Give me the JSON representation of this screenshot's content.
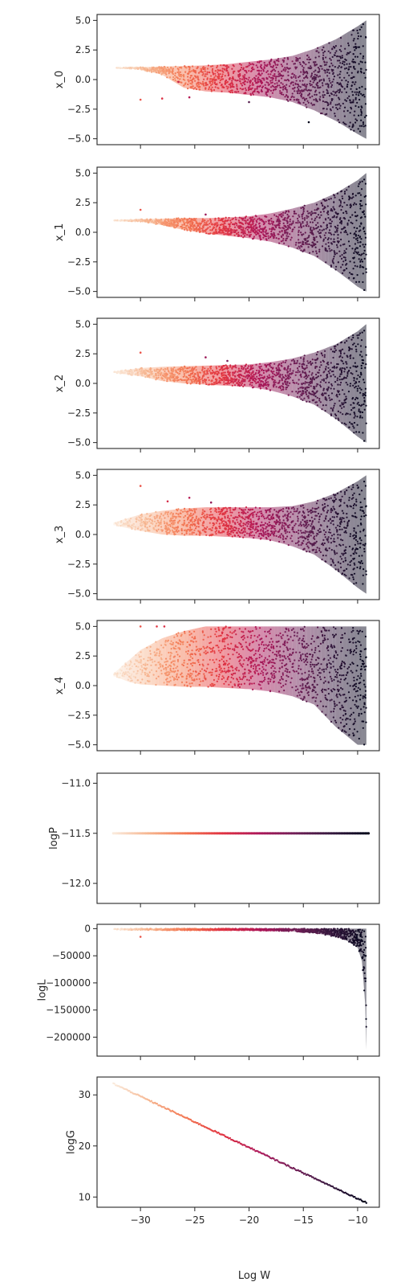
{
  "chart_data": {
    "type": "scatter",
    "shared_x": true,
    "xlabel": "Log W",
    "xlim": [
      -34,
      -8
    ],
    "xticks": [
      -30,
      -25,
      -20,
      -15,
      -10
    ],
    "xtick_labels": [
      "−30",
      "−25",
      "−20",
      "−15",
      "−10"
    ],
    "x_range_data": [
      -32.5,
      -9.0
    ],
    "colormap": [
      "#faebdd",
      "#f6b48e",
      "#f37651",
      "#e13342",
      "#ad1759",
      "#701f57",
      "#35193e",
      "#03051a"
    ],
    "grid": false,
    "legend": "none",
    "panels": [
      {
        "name": "x0",
        "ylabel": "x_0",
        "ylim": [
          -5.5,
          5.5
        ],
        "yticks": [
          -5.0,
          -2.5,
          0.0,
          2.5,
          5.0
        ],
        "ytick_labels": [
          "−5.0",
          "−2.5",
          "0.0",
          "2.5",
          "5.0"
        ],
        "envelope": {
          "x": [
            -32.5,
            -30,
            -28,
            -26,
            -24,
            -22,
            -20,
            -18,
            -16,
            -14,
            -12,
            -10,
            -9.2
          ],
          "upper": [
            1.0,
            1.05,
            1.1,
            1.15,
            1.2,
            1.3,
            1.5,
            1.7,
            2.0,
            2.6,
            3.4,
            4.5,
            5.0
          ],
          "lower": [
            1.0,
            0.85,
            0.4,
            -0.7,
            -1.0,
            -1.1,
            -1.3,
            -1.5,
            -1.9,
            -2.6,
            -3.5,
            -4.6,
            -5.0
          ]
        },
        "outliers": [
          [
            -30,
            -1.7
          ],
          [
            -28,
            -1.6
          ],
          [
            -25.5,
            -1.5
          ],
          [
            -20,
            -1.9
          ],
          [
            -14.5,
            -3.6
          ],
          [
            -26.5,
            -0.2
          ]
        ]
      },
      {
        "name": "x1",
        "ylabel": "x_1",
        "ylim": [
          -5.5,
          5.5
        ],
        "yticks": [
          -5.0,
          -2.5,
          0.0,
          2.5,
          5.0
        ],
        "ytick_labels": [
          "−5.0",
          "−2.5",
          "0.0",
          "2.5",
          "5.0"
        ],
        "envelope": {
          "x": [
            -32.5,
            -30,
            -28,
            -26,
            -24,
            -22,
            -20,
            -18,
            -16,
            -14,
            -12,
            -10,
            -9.2
          ],
          "upper": [
            1.0,
            1.1,
            1.15,
            1.2,
            1.2,
            1.25,
            1.35,
            1.6,
            2.0,
            2.5,
            3.3,
            4.4,
            5.0
          ],
          "lower": [
            1.0,
            0.9,
            0.6,
            0.2,
            -0.1,
            -0.3,
            -0.5,
            -0.8,
            -1.3,
            -2.0,
            -3.2,
            -4.6,
            -5.0
          ]
        },
        "outliers": [
          [
            -30,
            1.9
          ],
          [
            -24,
            1.5
          ]
        ]
      },
      {
        "name": "x2",
        "ylabel": "x_2",
        "ylim": [
          -5.5,
          5.5
        ],
        "yticks": [
          -5.0,
          -2.5,
          0.0,
          2.5,
          5.0
        ],
        "ytick_labels": [
          "−5.0",
          "−2.5",
          "0.0",
          "2.5",
          "5.0"
        ],
        "envelope": {
          "x": [
            -32.5,
            -30,
            -28,
            -26,
            -24,
            -22,
            -20,
            -18,
            -16,
            -14,
            -12,
            -10,
            -9.2
          ],
          "upper": [
            1.0,
            1.3,
            1.4,
            1.45,
            1.5,
            1.55,
            1.6,
            1.8,
            2.1,
            2.6,
            3.3,
            4.4,
            5.0
          ],
          "lower": [
            0.9,
            0.6,
            0.2,
            0.0,
            -0.1,
            -0.2,
            -0.3,
            -0.6,
            -1.1,
            -1.8,
            -3.0,
            -4.5,
            -5.0
          ]
        },
        "outliers": [
          [
            -30,
            2.6
          ],
          [
            -24,
            2.2
          ],
          [
            -22,
            1.9
          ]
        ]
      },
      {
        "name": "x3",
        "ylabel": "x_3",
        "ylim": [
          -5.5,
          5.5
        ],
        "yticks": [
          -5.0,
          -2.5,
          0.0,
          2.5,
          5.0
        ],
        "ytick_labels": [
          "−5.0",
          "−2.5",
          "0.0",
          "2.5",
          "5.0"
        ],
        "envelope": {
          "x": [
            -32.5,
            -30,
            -28,
            -26,
            -24,
            -22,
            -20,
            -18,
            -16,
            -14,
            -12,
            -10,
            -9.2
          ],
          "upper": [
            1.0,
            1.7,
            2.0,
            2.2,
            2.3,
            2.3,
            2.3,
            2.3,
            2.4,
            2.8,
            3.5,
            4.5,
            5.0
          ],
          "lower": [
            0.8,
            0.3,
            0.0,
            -0.1,
            -0.1,
            -0.2,
            -0.3,
            -0.5,
            -1.0,
            -1.7,
            -3.0,
            -4.5,
            -5.0
          ]
        },
        "outliers": [
          [
            -30,
            4.1
          ],
          [
            -27.5,
            2.8
          ],
          [
            -25.5,
            3.1
          ],
          [
            -23.5,
            2.7
          ]
        ]
      },
      {
        "name": "x4",
        "ylabel": "x_4",
        "ylim": [
          -5.5,
          5.5
        ],
        "yticks": [
          -5.0,
          -2.5,
          0.0,
          2.5,
          5.0
        ],
        "ytick_labels": [
          "−5.0",
          "−2.5",
          "0.0",
          "2.5",
          "5.0"
        ],
        "envelope": {
          "x": [
            -32.5,
            -31,
            -30,
            -28,
            -26,
            -24,
            -22,
            -20,
            -18,
            -16,
            -14,
            -12,
            -10,
            -9.2
          ],
          "upper": [
            1.0,
            2.2,
            3.0,
            4.0,
            4.6,
            5.0,
            5.0,
            5.0,
            5.0,
            5.0,
            5.0,
            5.0,
            5.0,
            5.0
          ],
          "lower": [
            0.8,
            0.3,
            0.1,
            0.0,
            -0.1,
            -0.1,
            -0.2,
            -0.3,
            -0.5,
            -0.9,
            -1.6,
            -3.5,
            -5.0,
            -5.0
          ]
        },
        "outliers": [
          [
            -30,
            5.0
          ],
          [
            -28.5,
            5.0
          ],
          [
            -27.8,
            5.0
          ]
        ]
      },
      {
        "name": "logP",
        "ylabel": "logP",
        "ylim": [
          -12.2,
          -10.9
        ],
        "yticks": [
          -12.0,
          -11.5,
          -11.0
        ],
        "ytick_labels": [
          "−12.0",
          "−11.5",
          "−11.0"
        ],
        "constant": -11.5
      },
      {
        "name": "logL",
        "ylabel": "logL",
        "ylim": [
          -235000,
          8000
        ],
        "yticks": [
          -200000,
          -150000,
          -100000,
          -50000,
          0
        ],
        "ytick_labels": [
          "−200000",
          "−150000",
          "−100000",
          "−50000",
          "0"
        ],
        "envelope": {
          "x": [
            -32.5,
            -28,
            -24,
            -20,
            -18,
            -16,
            -14,
            -12,
            -11,
            -10,
            -9.6,
            -9.3,
            -9.2
          ],
          "upper": [
            0,
            0,
            0,
            0,
            0,
            0,
            0,
            0,
            0,
            0,
            0,
            0,
            0
          ],
          "lower": [
            -2000,
            -3000,
            -3000,
            -3000,
            -4000,
            -5000,
            -8000,
            -15000,
            -22000,
            -35000,
            -60000,
            -140000,
            -222000
          ]
        },
        "outliers": [
          [
            -30,
            -15000
          ]
        ]
      },
      {
        "name": "logG",
        "ylabel": "logG",
        "ylim": [
          8,
          33.5
        ],
        "yticks": [
          10,
          20,
          30
        ],
        "ytick_labels": [
          "10",
          "20",
          "30"
        ],
        "line": {
          "x": [
            -32.5,
            -9.2
          ],
          "y": [
            32.2,
            8.9
          ]
        }
      }
    ]
  }
}
